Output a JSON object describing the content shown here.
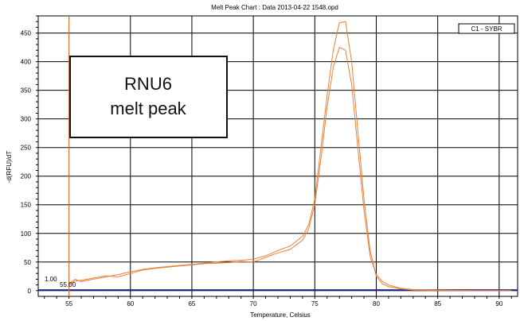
{
  "chart_data": {
    "type": "line",
    "title": "Melt Peak Chart : Data 2013-04-22 1548.opd",
    "xlabel": "Temperature, Celsius",
    "ylabel": "-d(RFU)/dT",
    "xlim": [
      52.5,
      91.5
    ],
    "ylim": [
      -10,
      480
    ],
    "xticks": [
      55,
      60,
      65,
      70,
      75,
      80,
      85,
      90
    ],
    "yticks": [
      0,
      50,
      100,
      150,
      200,
      250,
      300,
      350,
      400,
      450
    ],
    "grid": true,
    "legend": {
      "entries": [
        "C1 - SYBR"
      ],
      "placement": "top-right"
    },
    "threshold": {
      "value": 1.0,
      "label": "1.00"
    },
    "begin_marker": {
      "value": 55.0,
      "label": "55.00"
    },
    "series": [
      {
        "x": [
          55,
          55.5,
          56,
          57,
          58,
          59,
          60,
          61,
          62,
          63,
          64,
          65,
          66,
          67,
          68,
          69,
          70,
          71,
          72,
          73,
          74,
          74.5,
          75,
          75.5,
          76,
          76.5,
          77,
          77.5,
          78,
          78.5,
          79,
          79.5,
          80,
          80.5,
          81,
          82,
          83,
          85,
          88,
          91
        ],
        "y": [
          12,
          20,
          16,
          20,
          24,
          28,
          33,
          37,
          40,
          42,
          44,
          46,
          48,
          50,
          52,
          53,
          55,
          61,
          70,
          78,
          95,
          115,
          160,
          250,
          340,
          420,
          468,
          470,
          400,
          280,
          160,
          70,
          25,
          12,
          7,
          3,
          1,
          0,
          0,
          0
        ]
      },
      {
        "x": [
          55,
          55.5,
          56,
          57,
          58,
          59,
          60,
          61,
          62,
          63,
          64,
          65,
          66,
          67,
          68,
          69,
          70,
          71,
          72,
          73,
          74,
          74.5,
          75,
          75.5,
          76,
          76.5,
          77,
          77.5,
          78,
          78.5,
          79,
          79.5,
          80,
          80.5,
          81,
          82,
          83,
          85,
          88,
          91
        ],
        "y": [
          10,
          17,
          18,
          22,
          26,
          24,
          30,
          36,
          39,
          41,
          43,
          45,
          47,
          48,
          49,
          51,
          50,
          58,
          66,
          72,
          88,
          108,
          150,
          230,
          320,
          390,
          425,
          420,
          360,
          250,
          140,
          60,
          28,
          16,
          10,
          4,
          2,
          1,
          0,
          0
        ]
      }
    ],
    "annotation": {
      "line1": "RNU6",
      "line2": "melt peak"
    },
    "colors": {
      "series": "#e8803a",
      "marker": "#e8803a",
      "threshold": "#1a237e",
      "grid": "#000000"
    }
  }
}
